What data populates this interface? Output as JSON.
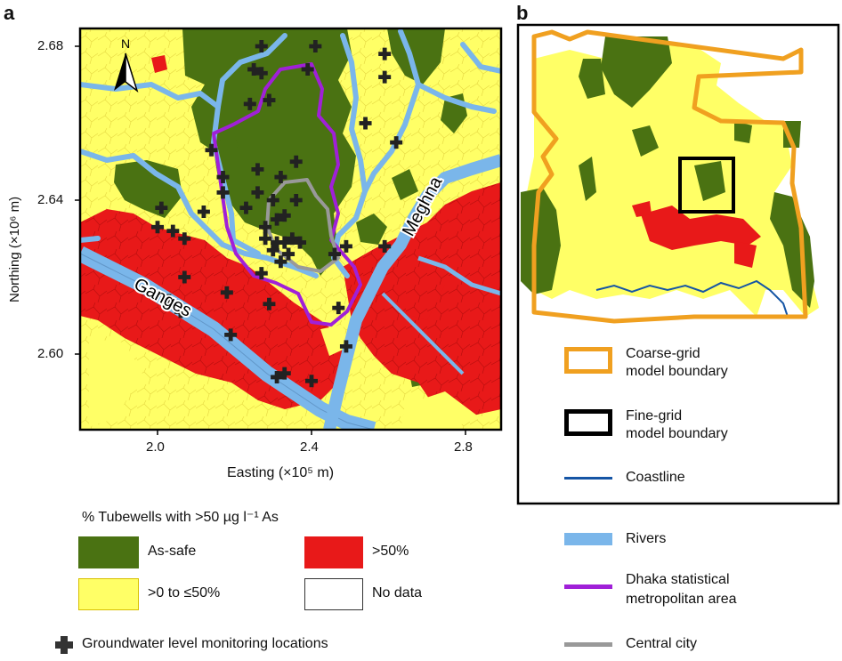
{
  "panel_a": {
    "letter": "a",
    "ylabel": "Northing (×10⁶ m)",
    "xlabel": "Easting (×10⁵ m)",
    "yticks": [
      "2.68",
      "2.64",
      "2.60"
    ],
    "xticks": [
      "2.0",
      "2.4",
      "2.8"
    ],
    "north_label": "N",
    "river_labels": [
      "Ganges",
      "Meghna"
    ]
  },
  "panel_b": {
    "letter": "b"
  },
  "legend": {
    "tubewell_title": "% Tubewells with >50 µg l⁻¹ As",
    "categories": [
      {
        "label": "As-safe",
        "color": "#4a7212"
      },
      {
        "label": ">50%",
        "color": "#e81919"
      },
      {
        "label": ">0 to ≤50%",
        "color": "#ffff66"
      },
      {
        "label": "No data",
        "color": "#ffffff"
      }
    ],
    "monitoring_label": "Groundwater level monitoring locations",
    "coarse_grid": "Coarse-grid model boundary",
    "coarse_grid_lines": [
      "Coarse-grid",
      "model boundary"
    ],
    "fine_grid_lines": [
      "Fine-grid",
      "model boundary"
    ],
    "coastline": "Coastline",
    "rivers": "Rivers",
    "dhaka_lines": [
      "Dhaka statistical",
      "metropolitan area"
    ],
    "central_city": "Central city"
  },
  "colors": {
    "as_safe": "#4a7212",
    "high": "#e81919",
    "low": "#ffff66",
    "river": "#7ab6ea",
    "dhaka": "#a020d8",
    "central": "#999999",
    "coarse": "#f0a020",
    "coast": "#1555a5"
  },
  "monitoring_points": [
    {
      "e": 2.27,
      "n": 2.68
    },
    {
      "e": 2.41,
      "n": 2.68
    },
    {
      "e": 2.25,
      "n": 2.674
    },
    {
      "e": 2.27,
      "n": 2.673
    },
    {
      "e": 2.39,
      "n": 2.674
    },
    {
      "e": 2.59,
      "n": 2.678
    },
    {
      "e": 2.59,
      "n": 2.672
    },
    {
      "e": 2.24,
      "n": 2.665
    },
    {
      "e": 2.29,
      "n": 2.666
    },
    {
      "e": 2.14,
      "n": 2.653
    },
    {
      "e": 2.17,
      "n": 2.646
    },
    {
      "e": 2.17,
      "n": 2.642
    },
    {
      "e": 2.26,
      "n": 2.648
    },
    {
      "e": 2.32,
      "n": 2.646
    },
    {
      "e": 2.36,
      "n": 2.65
    },
    {
      "e": 2.54,
      "n": 2.66
    },
    {
      "e": 2.62,
      "n": 2.655
    },
    {
      "e": 2.12,
      "n": 2.637
    },
    {
      "e": 2.23,
      "n": 2.638
    },
    {
      "e": 2.26,
      "n": 2.642
    },
    {
      "e": 2.3,
      "n": 2.64
    },
    {
      "e": 2.36,
      "n": 2.64
    },
    {
      "e": 2.01,
      "n": 2.638
    },
    {
      "e": 2.0,
      "n": 2.633
    },
    {
      "e": 2.04,
      "n": 2.632
    },
    {
      "e": 2.07,
      "n": 2.63
    },
    {
      "e": 2.28,
      "n": 2.633
    },
    {
      "e": 2.31,
      "n": 2.635
    },
    {
      "e": 2.33,
      "n": 2.636
    },
    {
      "e": 2.28,
      "n": 2.63
    },
    {
      "e": 2.31,
      "n": 2.629
    },
    {
      "e": 2.33,
      "n": 2.629
    },
    {
      "e": 2.35,
      "n": 2.63
    },
    {
      "e": 2.3,
      "n": 2.627
    },
    {
      "e": 2.34,
      "n": 2.626
    },
    {
      "e": 2.37,
      "n": 2.629
    },
    {
      "e": 2.32,
      "n": 2.624
    },
    {
      "e": 2.27,
      "n": 2.621
    },
    {
      "e": 2.46,
      "n": 2.626
    },
    {
      "e": 2.49,
      "n": 2.628
    },
    {
      "e": 2.59,
      "n": 2.628
    },
    {
      "e": 2.07,
      "n": 2.62
    },
    {
      "e": 2.18,
      "n": 2.616
    },
    {
      "e": 2.03,
      "n": 2.614
    },
    {
      "e": 2.06,
      "n": 2.611
    },
    {
      "e": 2.29,
      "n": 2.613
    },
    {
      "e": 2.19,
      "n": 2.605
    },
    {
      "e": 2.47,
      "n": 2.612
    },
    {
      "e": 2.49,
      "n": 2.602
    },
    {
      "e": 2.33,
      "n": 2.595
    },
    {
      "e": 2.31,
      "n": 2.594
    },
    {
      "e": 2.4,
      "n": 2.593
    }
  ]
}
